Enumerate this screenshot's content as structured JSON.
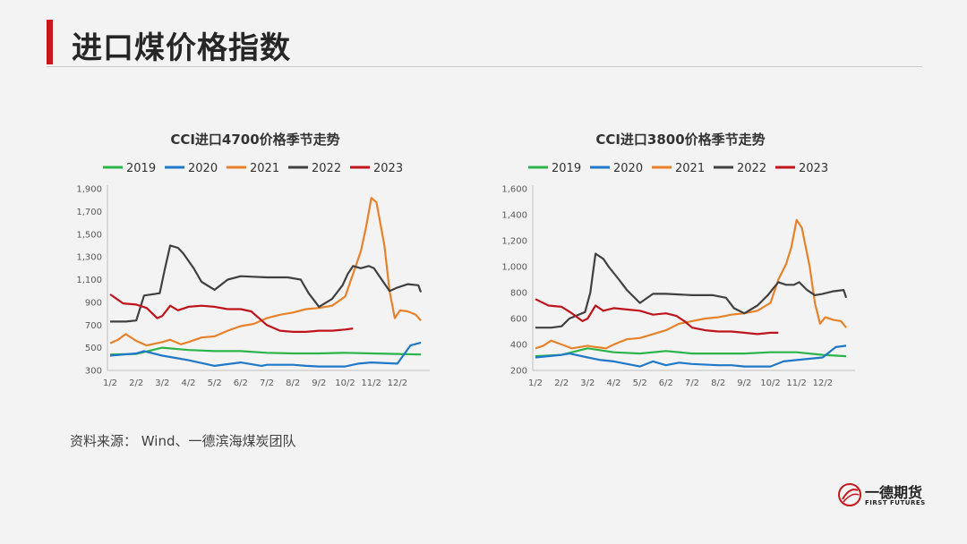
{
  "page": {
    "title": "进口煤价格指数",
    "source": "资料来源：  Wind、一德滨海煤炭团队",
    "logo": {
      "name": "一德期货",
      "sub": "FIRST FUTURES"
    }
  },
  "colors": {
    "2019": "#2cb44a",
    "2020": "#1f78c8",
    "2021": "#e8822a",
    "2022": "#404040",
    "2023": "#c0141c",
    "accent": "#c8161d"
  },
  "chart_data": [
    {
      "type": "line",
      "title": "CCI进口4700价格季节走势",
      "categories": [
        "1/2",
        "2/2",
        "3/2",
        "4/2",
        "5/2",
        "6/2",
        "7/2",
        "8/2",
        "9/2",
        "10/2",
        "11/2",
        "12/2"
      ],
      "yticks": [
        "1,900",
        "1,700",
        "1,500",
        "1,300",
        "1,100",
        "900",
        "700",
        "500",
        "300"
      ],
      "ylim": [
        300,
        1900
      ],
      "grid": false,
      "legend": "top",
      "series": [
        {
          "name": "2019",
          "x": [
            0,
            1,
            2,
            3,
            4,
            5,
            6,
            7,
            8,
            9,
            10,
            11,
            11.9
          ],
          "values": [
            440,
            445,
            500,
            480,
            470,
            470,
            455,
            450,
            450,
            455,
            450,
            445,
            440
          ]
        },
        {
          "name": "2020",
          "x": [
            0,
            1,
            1.3,
            2,
            2.5,
            3,
            4,
            5,
            5.8,
            6,
            7,
            7.5,
            8,
            9,
            9.5,
            10,
            11,
            11.5,
            11.9
          ],
          "values": [
            430,
            450,
            470,
            430,
            410,
            390,
            340,
            370,
            340,
            350,
            350,
            340,
            335,
            335,
            360,
            370,
            360,
            520,
            545
          ]
        },
        {
          "name": "2021",
          "x": [
            0,
            0.3,
            0.6,
            1,
            1.4,
            2,
            2.3,
            2.7,
            3,
            3.5,
            4,
            4.5,
            5,
            5.5,
            6,
            6.5,
            7,
            7.5,
            8,
            8.5,
            9,
            9.3,
            9.6,
            9.8,
            10,
            10.2,
            10.5,
            10.7,
            10.9,
            11.1,
            11.4,
            11.7,
            11.9
          ],
          "values": [
            540,
            570,
            620,
            560,
            520,
            550,
            570,
            530,
            550,
            590,
            600,
            650,
            690,
            710,
            760,
            790,
            810,
            840,
            850,
            870,
            950,
            1150,
            1350,
            1560,
            1820,
            1780,
            1400,
            1000,
            760,
            830,
            820,
            790,
            740
          ]
        },
        {
          "name": "2022",
          "x": [
            0,
            0.6,
            1,
            1.3,
            1.9,
            2.1,
            2.3,
            2.6,
            2.8,
            3.2,
            3.5,
            4,
            4.5,
            5,
            6,
            6.8,
            7.3,
            7.6,
            8,
            8.5,
            8.9,
            9.1,
            9.3,
            9.6,
            9.9,
            10.1,
            10.4,
            10.7,
            11,
            11.4,
            11.8,
            11.9
          ],
          "values": [
            730,
            730,
            740,
            960,
            980,
            1200,
            1400,
            1380,
            1330,
            1200,
            1080,
            1010,
            1100,
            1130,
            1120,
            1120,
            1100,
            980,
            860,
            930,
            1050,
            1150,
            1220,
            1200,
            1220,
            1200,
            1100,
            1000,
            1030,
            1060,
            1050,
            990
          ]
        },
        {
          "name": "2023",
          "x": [
            0,
            0.5,
            1,
            1.4,
            1.8,
            2,
            2.3,
            2.6,
            3,
            3.5,
            4,
            4.5,
            5,
            5.4,
            5.7,
            6,
            6.5,
            7,
            7.5,
            8,
            8.5,
            9,
            9.3
          ],
          "values": [
            970,
            890,
            880,
            850,
            760,
            780,
            870,
            830,
            860,
            870,
            860,
            840,
            840,
            820,
            760,
            700,
            650,
            640,
            640,
            650,
            650,
            660,
            670
          ]
        }
      ]
    },
    {
      "type": "line",
      "title": "CCI进口3800价格季节走势",
      "categories": [
        "1/2",
        "2/2",
        "3/2",
        "4/2",
        "5/2",
        "6/2",
        "7/2",
        "8/2",
        "9/2",
        "10/2",
        "11/2",
        "12/2"
      ],
      "yticks": [
        "1,600",
        "1,400",
        "1,200",
        "1,000",
        "800",
        "600",
        "400",
        "200"
      ],
      "ylim": [
        200,
        1600
      ],
      "grid": false,
      "legend": "top",
      "series": [
        {
          "name": "2019",
          "x": [
            0,
            1,
            2,
            3,
            4,
            5,
            6,
            7,
            8,
            9,
            10,
            11,
            11.9
          ],
          "values": [
            310,
            320,
            370,
            340,
            330,
            350,
            330,
            330,
            330,
            340,
            340,
            320,
            310
          ]
        },
        {
          "name": "2020",
          "x": [
            0,
            1,
            1.3,
            2,
            2.5,
            3,
            4,
            4.5,
            5,
            5.5,
            6,
            7,
            7.5,
            8,
            9,
            9.5,
            10,
            11,
            11.5,
            11.9
          ],
          "values": [
            300,
            320,
            330,
            300,
            280,
            270,
            230,
            270,
            240,
            260,
            250,
            240,
            240,
            230,
            230,
            270,
            280,
            300,
            380,
            390
          ]
        },
        {
          "name": "2021",
          "x": [
            0,
            0.3,
            0.6,
            1,
            1.4,
            2,
            2.3,
            2.7,
            3,
            3.5,
            4,
            4.5,
            5,
            5.5,
            6,
            6.5,
            7,
            7.5,
            8,
            8.5,
            9,
            9.3,
            9.6,
            9.8,
            10,
            10.2,
            10.5,
            10.7,
            10.9,
            11.1,
            11.4,
            11.7,
            11.9
          ],
          "values": [
            370,
            390,
            430,
            400,
            370,
            390,
            380,
            370,
            400,
            440,
            450,
            480,
            510,
            560,
            580,
            600,
            610,
            630,
            640,
            660,
            720,
            900,
            1020,
            1150,
            1360,
            1300,
            1000,
            720,
            560,
            610,
            590,
            580,
            530
          ]
        },
        {
          "name": "2022",
          "x": [
            0,
            0.6,
            1,
            1.3,
            1.9,
            2.1,
            2.3,
            2.6,
            2.8,
            3.2,
            3.5,
            4,
            4.5,
            5,
            6,
            6.8,
            7.3,
            7.6,
            8,
            8.5,
            8.9,
            9.1,
            9.3,
            9.6,
            9.9,
            10.1,
            10.4,
            10.7,
            11,
            11.4,
            11.8,
            11.9
          ],
          "values": [
            530,
            530,
            540,
            600,
            650,
            800,
            1100,
            1060,
            1000,
            900,
            820,
            720,
            790,
            790,
            780,
            780,
            760,
            680,
            640,
            700,
            780,
            830,
            880,
            860,
            860,
            880,
            820,
            780,
            790,
            810,
            820,
            760
          ]
        },
        {
          "name": "2023",
          "x": [
            0,
            0.5,
            1,
            1.4,
            1.8,
            2,
            2.3,
            2.6,
            3,
            3.5,
            4,
            4.5,
            5,
            5.4,
            5.7,
            6,
            6.5,
            7,
            7.5,
            8,
            8.5,
            9,
            9.3
          ],
          "values": [
            750,
            700,
            690,
            640,
            580,
            600,
            700,
            660,
            680,
            670,
            660,
            630,
            640,
            620,
            580,
            530,
            510,
            500,
            500,
            490,
            480,
            490,
            490
          ]
        }
      ]
    }
  ]
}
